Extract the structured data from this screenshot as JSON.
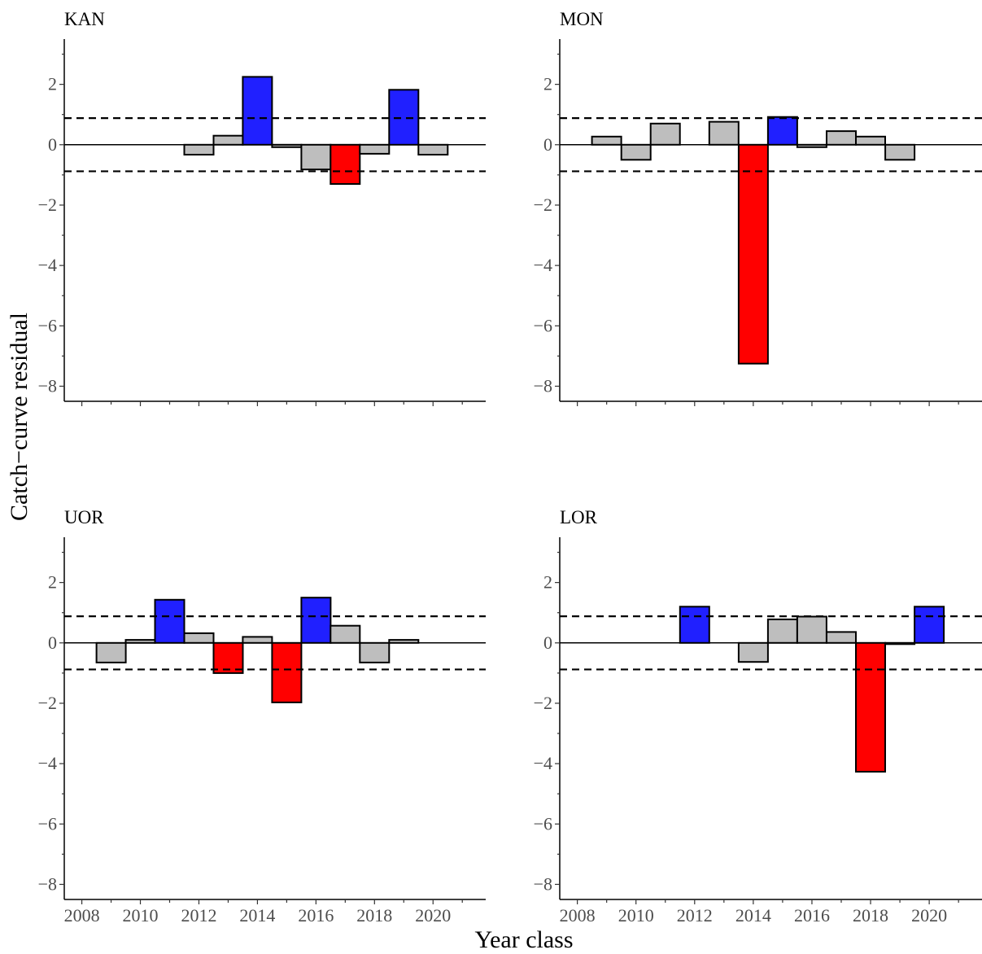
{
  "chart_data": {
    "type": "bar",
    "xlabel": "Year class",
    "ylabel": "Catch−curve residual",
    "xlim": [
      2007.4,
      2021.8
    ],
    "ylim": [
      -8.5,
      3.5
    ],
    "x_ticks": [
      2008,
      2010,
      2012,
      2014,
      2016,
      2018,
      2020
    ],
    "y_ticks": [
      2,
      0,
      -2,
      -4,
      -6,
      -8
    ],
    "threshold": 0.88,
    "colors": {
      "strong": "#2020ff",
      "weak": "#ff0000",
      "normal": "#bebebe"
    },
    "panels": [
      {
        "name": "KAN",
        "years": [
          2012,
          2013,
          2014,
          2015,
          2016,
          2017,
          2018,
          2019,
          2020
        ],
        "values": [
          -0.33,
          0.3,
          2.25,
          -0.08,
          -0.82,
          -1.3,
          -0.3,
          1.82,
          -0.33
        ]
      },
      {
        "name": "MON",
        "years": [
          2009,
          2010,
          2011,
          2012,
          2013,
          2014,
          2015,
          2016,
          2017,
          2018,
          2019
        ],
        "values": [
          0.27,
          -0.5,
          0.7,
          0.0,
          0.76,
          -7.25,
          0.92,
          -0.08,
          0.45,
          0.27,
          -0.5
        ]
      },
      {
        "name": "UOR",
        "years": [
          2009,
          2010,
          2011,
          2012,
          2013,
          2014,
          2015,
          2016,
          2017,
          2018,
          2019
        ],
        "values": [
          -0.65,
          0.1,
          1.43,
          0.32,
          -1.0,
          0.2,
          -1.97,
          1.5,
          0.57,
          -0.65,
          0.1
        ]
      },
      {
        "name": "LOR",
        "years": [
          2012,
          2013,
          2014,
          2015,
          2016,
          2017,
          2018,
          2019,
          2020
        ],
        "values": [
          1.2,
          0.0,
          -0.63,
          0.78,
          0.87,
          0.36,
          -4.27,
          -0.04,
          1.2
        ]
      }
    ]
  }
}
